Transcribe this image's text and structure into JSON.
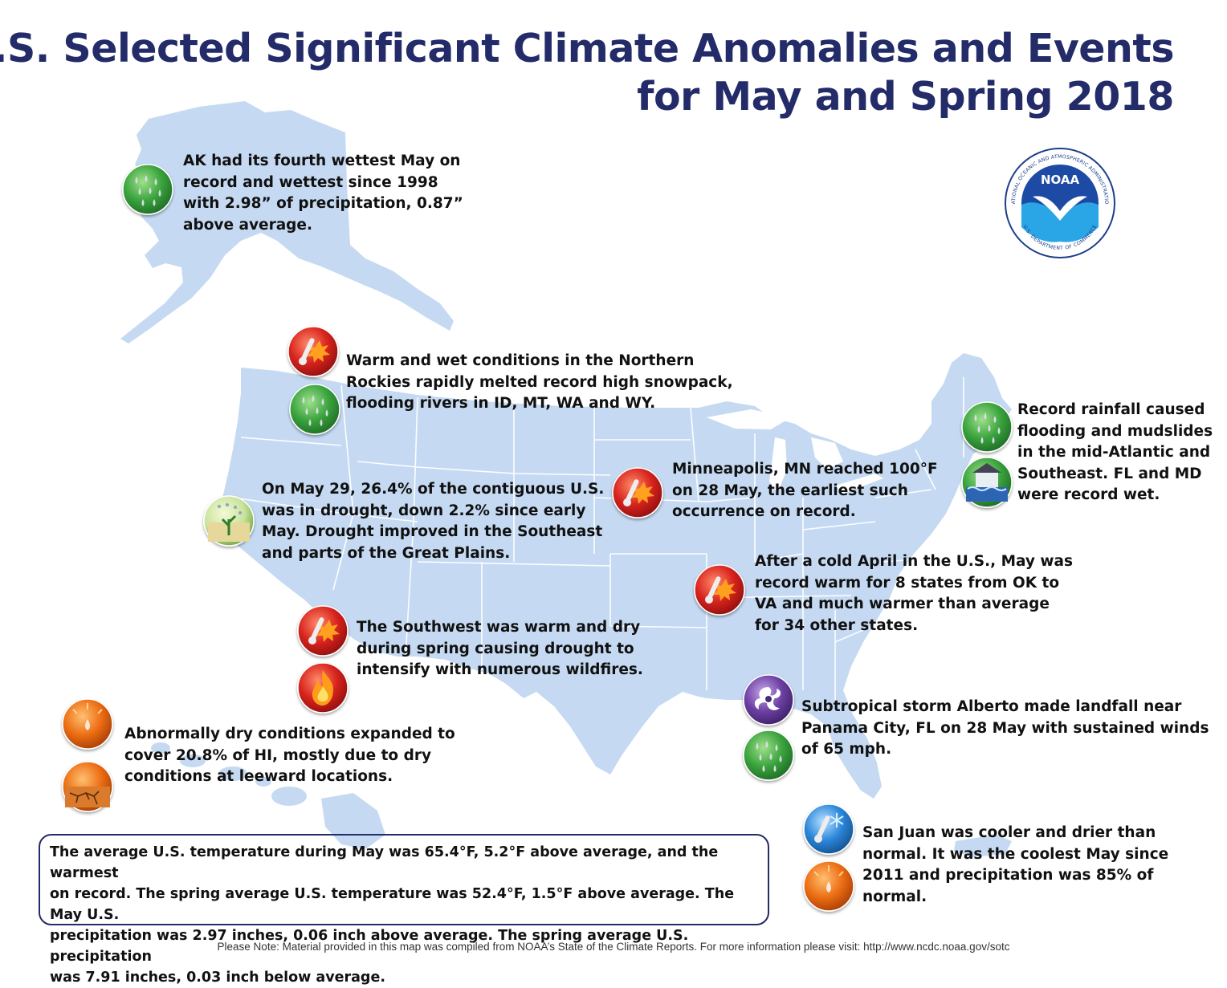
{
  "title": {
    "line1": "U.S. Selected Significant Climate Anomalies and Events",
    "line2": "for May and Spring 2018"
  },
  "logo": {
    "label": "NOAA",
    "ring_top": "NATIONAL OCEANIC AND ATMOSPHERIC ADMINISTRATION",
    "ring_bottom": "U.S. DEPARTMENT OF COMMERCE"
  },
  "colors": {
    "title": "#232b69",
    "land": "#c5daf2",
    "borders": "#ffffff",
    "icon_precip": "#2f9a3a",
    "icon_heat": "#d01f1f",
    "icon_dry": "#e86a12",
    "icon_storm": "#6b3fa0",
    "icon_cool": "#2a7fd6"
  },
  "events": {
    "alaska": {
      "icons": [
        "precipitation-icon"
      ],
      "lines": [
        "AK had its fourth wettest May on",
        "record and wettest since 1998",
        "with 2.98” of precipitation, 0.87”",
        "above average."
      ]
    },
    "northern_rockies": {
      "icons": [
        "heat-icon",
        "precipitation-icon"
      ],
      "lines": [
        "Warm and wet conditions in the Northern",
        "Rockies rapidly melted record high snowpack,",
        "flooding rivers in ID, MT, WA and WY."
      ]
    },
    "drought": {
      "icons": [
        "drought-improvement-icon"
      ],
      "lines": [
        "On May 29, 26.4% of the contiguous U.S.",
        "was in drought, down 2.2% since early",
        "May. Drought improved in the Southeast",
        "and parts of the Great Plains."
      ]
    },
    "minneapolis": {
      "icons": [
        "heat-icon"
      ],
      "lines": [
        "Minneapolis, MN reached 100°F",
        "on 28 May, the earliest such",
        "occurrence on record."
      ]
    },
    "mid_atlantic": {
      "icons": [
        "precipitation-icon",
        "flood-icon"
      ],
      "lines": [
        "Record rainfall caused",
        "flooding and mudslides",
        "in the mid-Atlantic and",
        "Southeast. FL and MD",
        "were record wet."
      ]
    },
    "warm_may": {
      "icons": [
        "heat-icon"
      ],
      "lines": [
        "After a cold April in the U.S., May was",
        "record warm for 8 states from OK to",
        "VA and much warmer than average",
        "for 34 other states."
      ]
    },
    "southwest": {
      "icons": [
        "heat-icon",
        "wildfire-icon"
      ],
      "lines": [
        "The Southwest was warm and dry",
        "during spring causing drought to",
        "intensify with numerous wildfires."
      ]
    },
    "alberto": {
      "icons": [
        "tropical-storm-icon",
        "precipitation-icon"
      ],
      "lines": [
        "Subtropical storm Alberto made landfall near",
        "Panama City, FL on 28 May with sustained winds",
        "of 65 mph."
      ]
    },
    "hawaii": {
      "icons": [
        "dryness-icon",
        "drought-icon"
      ],
      "lines": [
        "Abnormally dry conditions expanded to",
        "cover 20.8% of HI, mostly due to dry",
        "conditions at leeward locations."
      ]
    },
    "san_juan": {
      "icons": [
        "cool-icon",
        "dryness-icon"
      ],
      "lines": [
        "San Juan was cooler and drier than",
        "normal. It was the coolest May since",
        "2011 and  precipitation was 85% of",
        "normal."
      ]
    }
  },
  "summary": {
    "lines": [
      "The average U.S. temperature during May was 65.4°F, 5.2°F above average, and the warmest",
      "on record. The spring average U.S. temperature was 52.4°F, 1.5°F above average. The May U.S.",
      "precipitation was 2.97 inches, 0.06 inch above average. The spring average U.S. precipitation",
      "was 7.91 inches, 0.03 inch below average."
    ]
  },
  "footnote": "Please Note: Material provided in this map was compiled from NOAA’s State of the Climate Reports. For more information please visit: http://www.ncdc.noaa.gov/sotc"
}
